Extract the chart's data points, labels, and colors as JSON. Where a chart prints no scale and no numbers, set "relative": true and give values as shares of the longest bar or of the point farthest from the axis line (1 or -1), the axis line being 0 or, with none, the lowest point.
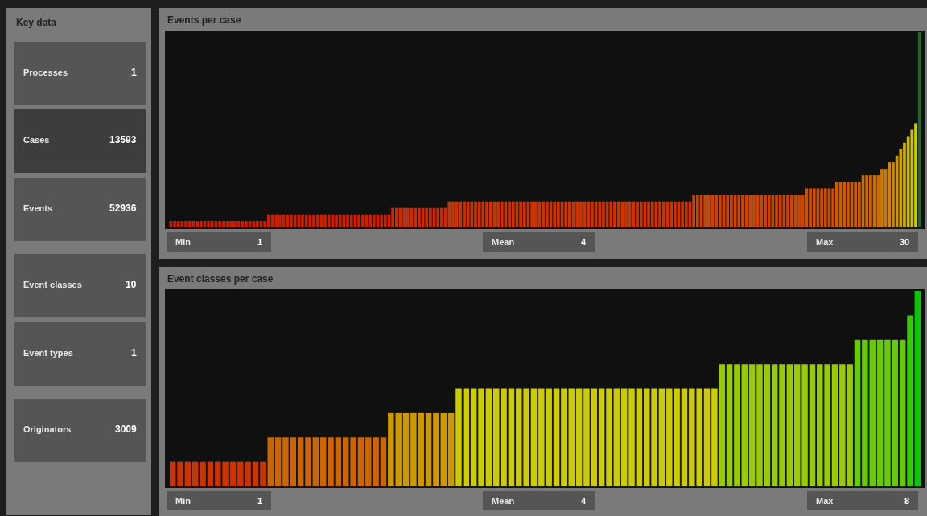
{
  "chart_data": [
    {
      "type": "other",
      "title": "Key data",
      "annotations": [
        "Processes",
        "1",
        "Cases",
        "13593",
        "Events",
        "52936",
        "Event classes",
        "10",
        "Event types",
        "1",
        "Originators",
        "3009"
      ],
      "colors": [
        "#555555",
        "#3d3d3d",
        "#555555",
        "#555555",
        "#555555",
        "#555555"
      ]
    },
    {
      "type": "bar",
      "title": "Events per case",
      "relative": true,
      "grid": false,
      "tick_labels": false,
      "categories": [
        null,
        null,
        null,
        null,
        null,
        null,
        null,
        null,
        null,
        null,
        null,
        null,
        null,
        null,
        null,
        null,
        null,
        null,
        null,
        null,
        null,
        null,
        null,
        null,
        null,
        null,
        null,
        null,
        null,
        null,
        null,
        null,
        null,
        null,
        null,
        null,
        null,
        null,
        null,
        null,
        null,
        null,
        null,
        null,
        null,
        null,
        null,
        null,
        null,
        null,
        null,
        null,
        null,
        null,
        null,
        null,
        null,
        null,
        null,
        null,
        null,
        null,
        null,
        null,
        null,
        null,
        null,
        null,
        null,
        null,
        null,
        null,
        null,
        null,
        null,
        null,
        null,
        null,
        null,
        null,
        null,
        null,
        null,
        null,
        null,
        null,
        null,
        null,
        null,
        null,
        null,
        null,
        null,
        null,
        null,
        null,
        null,
        null,
        null,
        null,
        null,
        null,
        null,
        null,
        null,
        null,
        null,
        null,
        null,
        null,
        null,
        null,
        null,
        null,
        null,
        null,
        null,
        null,
        null,
        null,
        null,
        null,
        null,
        null,
        null,
        null,
        null,
        null,
        null,
        null,
        null,
        null,
        null,
        null,
        null,
        null,
        null,
        null,
        null,
        null,
        null,
        null,
        null,
        null,
        null,
        null,
        null,
        null,
        null,
        null,
        null,
        null,
        null,
        null,
        null,
        null,
        null,
        null,
        null,
        null,
        null,
        null,
        null,
        null,
        null,
        null,
        null,
        null,
        null,
        null,
        null,
        null,
        null,
        null,
        null,
        null,
        null,
        null,
        null,
        null,
        null,
        null,
        null,
        null,
        null,
        null,
        null,
        null,
        null,
        null,
        null,
        null,
        null,
        null,
        null,
        null,
        null,
        null,
        null,
        null
      ],
      "values": [
        0.033,
        0.033,
        0.033,
        0.033,
        0.033,
        0.033,
        0.033,
        0.033,
        0.033,
        0.033,
        0.033,
        0.033,
        0.033,
        0.033,
        0.033,
        0.033,
        0.033,
        0.033,
        0.033,
        0.033,
        0.033,
        0.033,
        0.033,
        0.033,
        0.033,
        0.033,
        0.067,
        0.067,
        0.067,
        0.067,
        0.067,
        0.067,
        0.067,
        0.067,
        0.067,
        0.067,
        0.067,
        0.067,
        0.067,
        0.067,
        0.067,
        0.067,
        0.067,
        0.067,
        0.067,
        0.067,
        0.067,
        0.067,
        0.067,
        0.067,
        0.067,
        0.067,
        0.067,
        0.067,
        0.067,
        0.067,
        0.067,
        0.067,
        0.067,
        0.1,
        0.1,
        0.1,
        0.1,
        0.1,
        0.1,
        0.1,
        0.1,
        0.1,
        0.1,
        0.1,
        0.1,
        0.1,
        0.1,
        0.1,
        0.133,
        0.133,
        0.133,
        0.133,
        0.133,
        0.133,
        0.133,
        0.133,
        0.133,
        0.133,
        0.133,
        0.133,
        0.133,
        0.133,
        0.133,
        0.133,
        0.133,
        0.133,
        0.133,
        0.133,
        0.133,
        0.133,
        0.133,
        0.133,
        0.133,
        0.133,
        0.133,
        0.133,
        0.133,
        0.133,
        0.133,
        0.133,
        0.133,
        0.133,
        0.133,
        0.133,
        0.133,
        0.133,
        0.133,
        0.133,
        0.133,
        0.133,
        0.133,
        0.133,
        0.133,
        0.133,
        0.133,
        0.133,
        0.133,
        0.133,
        0.133,
        0.133,
        0.133,
        0.133,
        0.133,
        0.133,
        0.133,
        0.133,
        0.133,
        0.133,
        0.133,
        0.133,
        0.133,
        0.133,
        0.133,
        0.167,
        0.167,
        0.167,
        0.167,
        0.167,
        0.167,
        0.167,
        0.167,
        0.167,
        0.167,
        0.167,
        0.167,
        0.167,
        0.167,
        0.167,
        0.167,
        0.167,
        0.167,
        0.167,
        0.167,
        0.167,
        0.167,
        0.167,
        0.167,
        0.167,
        0.167,
        0.167,
        0.167,
        0.167,
        0.167,
        0.2,
        0.2,
        0.2,
        0.2,
        0.2,
        0.2,
        0.2,
        0.2,
        0.233,
        0.233,
        0.233,
        0.233,
        0.233,
        0.233,
        0.233,
        0.267,
        0.267,
        0.267,
        0.267,
        0.267,
        0.3,
        0.3,
        0.333,
        0.333,
        0.367,
        0.4,
        0.433,
        0.467,
        0.5,
        0.533,
        1
      ],
      "colors": [
        "#cc1a00",
        "#cc1a00",
        "#cc1a00",
        "#cc1a00",
        "#cc1a00",
        "#cc1a00",
        "#cc1a00",
        "#cc1a00",
        "#cc1a00",
        "#cc1a00",
        "#cc1a00",
        "#cc1a00",
        "#cc1a00",
        "#cc1a00",
        "#cc1a00",
        "#cc1a00",
        "#cc1a00",
        "#cc1a00",
        "#cc1a00",
        "#cc1a00",
        "#cc1a00",
        "#cc1a00",
        "#cc1a00",
        "#cc1a00",
        "#cc1a00",
        "#cc1a00",
        "#cc1f00",
        "#cc1f00",
        "#cc1f00",
        "#cc1f00",
        "#cc1f00",
        "#cc1f00",
        "#cc1f00",
        "#cc1f00",
        "#cc1f00",
        "#cc1f00",
        "#cc1f00",
        "#cc1f00",
        "#cc1f00",
        "#cc1f00",
        "#cc1f00",
        "#cc1f00",
        "#cc1f00",
        "#cc1f00",
        "#cc1f00",
        "#cc1f00",
        "#cc1f00",
        "#cc1f00",
        "#cc1f00",
        "#cc1f00",
        "#cc1f00",
        "#cc1f00",
        "#cc1f00",
        "#cc1f00",
        "#cc1f00",
        "#cc1f00",
        "#cc1f00",
        "#cc1f00",
        "#cc1f00",
        "#cc2a00",
        "#cc2a00",
        "#cc2a00",
        "#cc2a00",
        "#cc2a00",
        "#cc2a00",
        "#cc2a00",
        "#cc2a00",
        "#cc2a00",
        "#cc2a00",
        "#cc2a00",
        "#cc2a00",
        "#cc2a00",
        "#cc2a00",
        "#cc2a00",
        "#cc3300",
        "#cc3300",
        "#cc3300",
        "#cc3300",
        "#cc3300",
        "#cc3300",
        "#cc3300",
        "#cc3300",
        "#cc3300",
        "#cc3300",
        "#cc3300",
        "#cc3300",
        "#cc3300",
        "#cc3300",
        "#cc3300",
        "#cc3300",
        "#cc3300",
        "#cc3300",
        "#cc3300",
        "#cc3300",
        "#cc3300",
        "#cc3300",
        "#cc3300",
        "#cc3300",
        "#cc3300",
        "#cc3300",
        "#cc3300",
        "#cc3300",
        "#cc3300",
        "#cc3300",
        "#cc3300",
        "#cc3300",
        "#cc3300",
        "#cc3300",
        "#cc3300",
        "#cc3300",
        "#cc3300",
        "#cc3300",
        "#cc3300",
        "#cc3300",
        "#cc3300",
        "#cc3300",
        "#cc3300",
        "#cc3300",
        "#cc3300",
        "#cc3300",
        "#cc3300",
        "#cc3300",
        "#cc3300",
        "#cc3300",
        "#cc3300",
        "#cc3300",
        "#cc3300",
        "#cc3300",
        "#cc3300",
        "#cc3300",
        "#cc3300",
        "#cc3300",
        "#cc3300",
        "#cc3300",
        "#cc3300",
        "#cc3300",
        "#cc3300",
        "#cc3300",
        "#cc3300",
        "#cc4400",
        "#cc4400",
        "#cc4400",
        "#cc4400",
        "#cc4400",
        "#cc4400",
        "#cc4400",
        "#cc4400",
        "#cc4400",
        "#cc4400",
        "#cc4400",
        "#cc4400",
        "#cc4400",
        "#cc4400",
        "#cc4400",
        "#cc4400",
        "#cc4400",
        "#cc4400",
        "#cc4400",
        "#cc4400",
        "#cc4400",
        "#cc4400",
        "#cc4400",
        "#cc4400",
        "#cc4400",
        "#cc4400",
        "#cc4400",
        "#cc4400",
        "#cc4400",
        "#cc4400",
        "#cc5000",
        "#cc5000",
        "#cc5000",
        "#cc5000",
        "#cc5000",
        "#cc5000",
        "#cc5000",
        "#cc5000",
        "#cc5e00",
        "#cc5e00",
        "#cc5e00",
        "#cc5e00",
        "#cc5e00",
        "#cc5e00",
        "#cc5e00",
        "#cc6a00",
        "#cc6a00",
        "#cc6a00",
        "#cc6a00",
        "#cc6a00",
        "#cc7800",
        "#cc7800",
        "#cc8800",
        "#cc8800",
        "#cc9600",
        "#cca300",
        "#ccb000",
        "#ccbb00",
        "#ccc400",
        "#cccc00",
        "#1f6a1f"
      ],
      "annotations": [
        "Min",
        "1",
        "Mean",
        "4",
        "Max",
        "30"
      ]
    },
    {
      "type": "bar",
      "title": "Event classes per case",
      "relative": true,
      "grid": false,
      "tick_labels": false,
      "categories": [
        null,
        null,
        null,
        null,
        null,
        null,
        null,
        null,
        null,
        null,
        null,
        null,
        null,
        null,
        null,
        null,
        null,
        null,
        null,
        null,
        null,
        null,
        null,
        null,
        null,
        null,
        null,
        null,
        null,
        null,
        null,
        null,
        null,
        null,
        null,
        null,
        null,
        null,
        null,
        null,
        null,
        null,
        null,
        null,
        null,
        null,
        null,
        null,
        null,
        null,
        null,
        null,
        null,
        null,
        null,
        null,
        null,
        null,
        null,
        null,
        null,
        null,
        null,
        null,
        null,
        null,
        null,
        null,
        null,
        null,
        null,
        null,
        null,
        null,
        null,
        null,
        null,
        null,
        null,
        null,
        null,
        null,
        null,
        null,
        null,
        null,
        null,
        null,
        null,
        null,
        null,
        null,
        null,
        null,
        null,
        null,
        null,
        null,
        null,
        null
      ],
      "values": [
        0.125,
        0.125,
        0.125,
        0.125,
        0.125,
        0.125,
        0.125,
        0.125,
        0.125,
        0.125,
        0.125,
        0.125,
        0.125,
        0.25,
        0.25,
        0.25,
        0.25,
        0.25,
        0.25,
        0.25,
        0.25,
        0.25,
        0.25,
        0.25,
        0.25,
        0.25,
        0.25,
        0.25,
        0.25,
        0.375,
        0.375,
        0.375,
        0.375,
        0.375,
        0.375,
        0.375,
        0.375,
        0.375,
        0.5,
        0.5,
        0.5,
        0.5,
        0.5,
        0.5,
        0.5,
        0.5,
        0.5,
        0.5,
        0.5,
        0.5,
        0.5,
        0.5,
        0.5,
        0.5,
        0.5,
        0.5,
        0.5,
        0.5,
        0.5,
        0.5,
        0.5,
        0.5,
        0.5,
        0.5,
        0.5,
        0.5,
        0.5,
        0.5,
        0.5,
        0.5,
        0.5,
        0.5,
        0.5,
        0.625,
        0.625,
        0.625,
        0.625,
        0.625,
        0.625,
        0.625,
        0.625,
        0.625,
        0.625,
        0.625,
        0.625,
        0.625,
        0.625,
        0.625,
        0.625,
        0.625,
        0.625,
        0.75,
        0.75,
        0.75,
        0.75,
        0.75,
        0.75,
        0.75,
        0.875,
        1
      ],
      "colors": [
        "#cc3300",
        "#cc3300",
        "#cc3300",
        "#cc3300",
        "#cc3300",
        "#cc3300",
        "#cc3300",
        "#cc3300",
        "#cc3300",
        "#cc3300",
        "#cc3300",
        "#cc3300",
        "#cc3300",
        "#cc6600",
        "#cc6600",
        "#cc6600",
        "#cc6600",
        "#cc6600",
        "#cc6600",
        "#cc6600",
        "#cc6600",
        "#cc6600",
        "#cc6600",
        "#cc6600",
        "#cc6600",
        "#cc6600",
        "#cc6600",
        "#cc6600",
        "#cc6600",
        "#cc9900",
        "#cc9900",
        "#cc9900",
        "#cc9900",
        "#cc9900",
        "#cc9900",
        "#cc9900",
        "#cc9900",
        "#cc9900",
        "#cccc00",
        "#cccc00",
        "#cccc00",
        "#cccc00",
        "#cccc00",
        "#cccc00",
        "#cccc00",
        "#cccc00",
        "#cccc00",
        "#cccc00",
        "#cccc00",
        "#cccc00",
        "#cccc00",
        "#cccc00",
        "#cccc00",
        "#cccc00",
        "#cccc00",
        "#cccc00",
        "#cccc00",
        "#cccc00",
        "#cccc00",
        "#cccc00",
        "#cccc00",
        "#cccc00",
        "#cccc00",
        "#cccc00",
        "#cccc00",
        "#cccc00",
        "#cccc00",
        "#cccc00",
        "#cccc00",
        "#cccc00",
        "#cccc00",
        "#cccc00",
        "#cccc00",
        "#99cc00",
        "#99cc00",
        "#99cc00",
        "#99cc00",
        "#99cc00",
        "#99cc00",
        "#99cc00",
        "#99cc00",
        "#99cc00",
        "#99cc00",
        "#99cc00",
        "#99cc00",
        "#99cc00",
        "#99cc00",
        "#99cc00",
        "#99cc00",
        "#99cc00",
        "#99cc00",
        "#66cc00",
        "#66cc00",
        "#66cc00",
        "#66cc00",
        "#66cc00",
        "#66cc00",
        "#66cc00",
        "#33cc00",
        "#00cc00"
      ],
      "annotations": [
        "Min",
        "1",
        "Mean",
        "4",
        "Max",
        "8"
      ]
    }
  ]
}
